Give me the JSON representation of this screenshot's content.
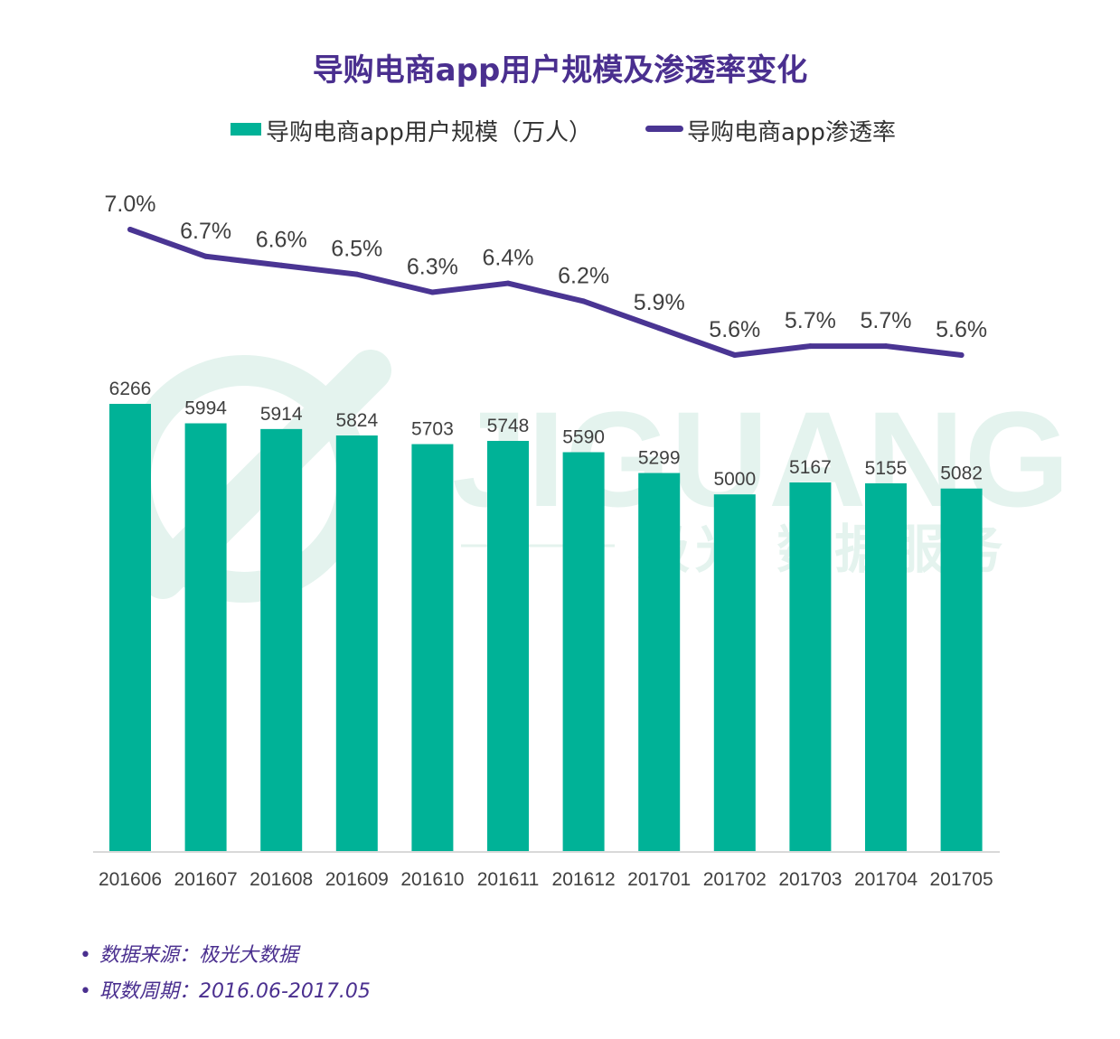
{
  "title": "导购电商app用户规模及渗透率变化",
  "legend": {
    "bar_label": "导购电商app用户规模（万人）",
    "line_label": "导购电商app渗透率"
  },
  "colors": {
    "bar": "#00b297",
    "line": "#4a3593",
    "title": "#4a2f8f",
    "watermark": "#e4f3ee"
  },
  "watermark": {
    "brand": "JIGUANG",
    "tagline": "极光 数据服务"
  },
  "notes": {
    "bullet": "•",
    "source": "数据来源：极光大数据",
    "period": "取数周期：2016.06-2017.05"
  },
  "chart_data": {
    "type": "bar",
    "title": "导购电商app用户规模及渗透率变化",
    "categories": [
      "201606",
      "201607",
      "201608",
      "201609",
      "201610",
      "201611",
      "201612",
      "201701",
      "201702",
      "201703",
      "201704",
      "201705"
    ],
    "series": [
      {
        "name": "导购电商app用户规模（万人）",
        "type": "bar",
        "values": [
          6266,
          5994,
          5914,
          5824,
          5703,
          5748,
          5590,
          5299,
          5000,
          5167,
          5155,
          5082
        ]
      },
      {
        "name": "导购电商app渗透率",
        "type": "line",
        "values": [
          7.0,
          6.7,
          6.6,
          6.5,
          6.3,
          6.4,
          6.2,
          5.9,
          5.6,
          5.7,
          5.7,
          5.6
        ],
        "labels": [
          "7.0%",
          "6.7%",
          "6.6%",
          "6.5%",
          "6.3%",
          "6.4%",
          "6.2%",
          "5.9%",
          "5.6%",
          "5.7%",
          "5.7%",
          "5.6%"
        ]
      }
    ],
    "legend_position": "top",
    "grid": false
  }
}
